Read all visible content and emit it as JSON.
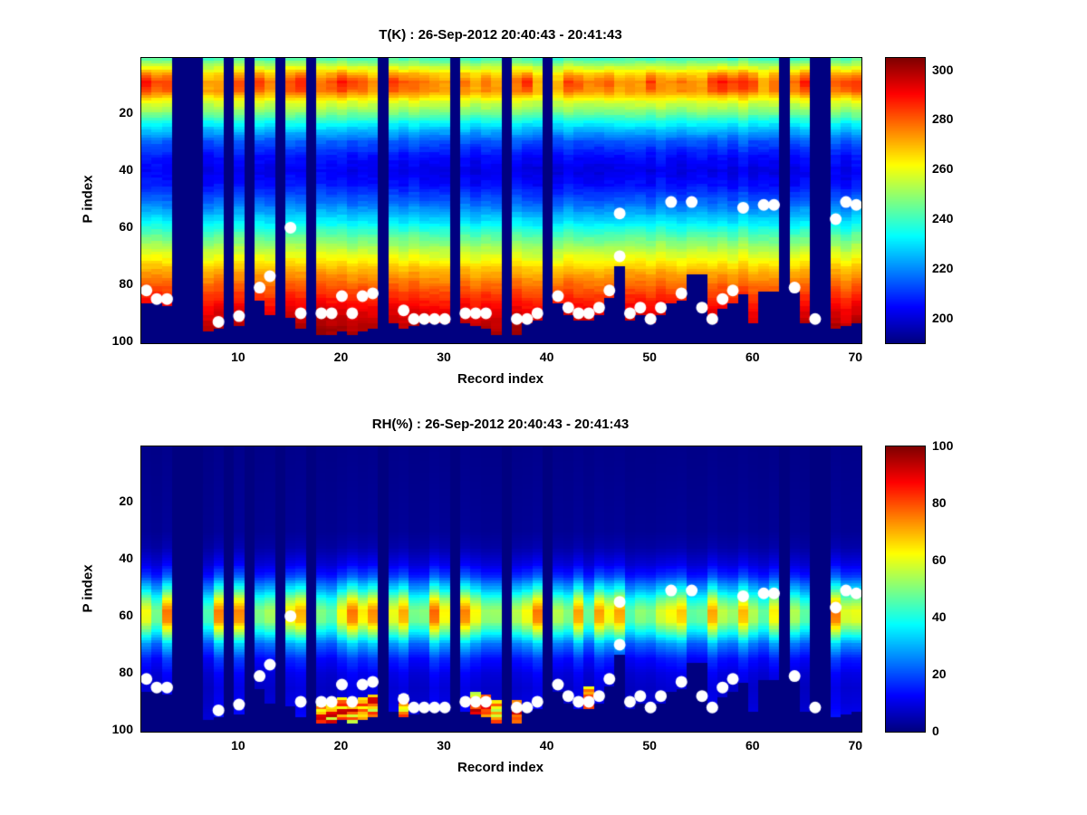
{
  "chart_data": {
    "type": "heatmap",
    "plots": [
      {
        "name": "temperature",
        "type": "heatmap",
        "title": "T(K) : 26-Sep-2012 20:40:43 - 20:41:43",
        "xlabel": "Record index",
        "ylabel": "P index",
        "x_ticks": [
          10,
          20,
          30,
          40,
          50,
          60,
          70
        ],
        "y_ticks": [
          20,
          40,
          60,
          80,
          100
        ],
        "x_range": [
          1,
          70
        ],
        "y_range": [
          1,
          100
        ],
        "y_direction": "down",
        "colormap": "jet",
        "clim": [
          190,
          305
        ],
        "colorbar_ticks": [
          200,
          220,
          240,
          260,
          280,
          300
        ],
        "units": "K",
        "profile_p": [
          1,
          3,
          6,
          9,
          12,
          16,
          20,
          25,
          30,
          35,
          40,
          45,
          50,
          55,
          60,
          65,
          70,
          75,
          80,
          85,
          90,
          95,
          100
        ],
        "profile_v": [
          242,
          252,
          270,
          280,
          277,
          258,
          246,
          228,
          214,
          206,
          202,
          206,
          214,
          224,
          236,
          248,
          259,
          270,
          279,
          287,
          294,
          299,
          302
        ]
      },
      {
        "name": "humidity",
        "type": "heatmap",
        "title": "RH(%) : 26-Sep-2012 20:40:43 - 20:41:43",
        "xlabel": "Record index",
        "ylabel": "P index",
        "x_ticks": [
          10,
          20,
          30,
          40,
          50,
          60,
          70
        ],
        "y_ticks": [
          20,
          40,
          60,
          80,
          100
        ],
        "x_range": [
          1,
          70
        ],
        "y_range": [
          1,
          100
        ],
        "y_direction": "down",
        "colormap": "jet",
        "clim": [
          0,
          100
        ],
        "colorbar_ticks": [
          0,
          20,
          40,
          60,
          80,
          100
        ],
        "units": "%",
        "profile_p": [
          1,
          30,
          36,
          42,
          46,
          50,
          54,
          58,
          62,
          66,
          70,
          75,
          80,
          85,
          90,
          95,
          100
        ],
        "profile_v": [
          1,
          2,
          4,
          10,
          18,
          32,
          48,
          60,
          58,
          42,
          26,
          15,
          10,
          8,
          9,
          11,
          12
        ]
      }
    ],
    "records": {
      "count": 70,
      "missing": [
        4,
        5,
        6,
        9,
        11,
        14,
        17,
        24,
        31,
        36,
        40,
        63,
        66,
        67
      ],
      "surface": [
        86,
        86,
        87,
        null,
        null,
        null,
        96,
        95,
        null,
        94,
        null,
        85,
        90,
        null,
        91,
        95,
        null,
        97,
        97,
        96,
        97,
        96,
        95,
        null,
        93,
        95,
        94,
        93,
        93,
        93,
        null,
        93,
        94,
        95,
        97,
        null,
        97,
        93,
        92,
        null,
        86,
        90,
        92,
        92,
        90,
        84,
        73,
        92,
        90,
        93,
        90,
        86,
        85,
        76,
        76,
        93,
        88,
        86,
        83,
        93,
        82,
        82,
        null,
        82,
        93,
        null,
        null,
        95,
        94,
        93
      ],
      "wet_surface": [
        18,
        19,
        20,
        21,
        22,
        23,
        26,
        33,
        34,
        35,
        37,
        44
      ]
    },
    "dots": [
      {
        "r": 1,
        "p": 82
      },
      {
        "r": 2,
        "p": 85
      },
      {
        "r": 3,
        "p": 85
      },
      {
        "r": 8,
        "p": 93
      },
      {
        "r": 10,
        "p": 91
      },
      {
        "r": 12,
        "p": 81
      },
      {
        "r": 13,
        "p": 77
      },
      {
        "r": 15,
        "p": 60
      },
      {
        "r": 16,
        "p": 90
      },
      {
        "r": 18,
        "p": 90
      },
      {
        "r": 19,
        "p": 90
      },
      {
        "r": 20,
        "p": 84
      },
      {
        "r": 21,
        "p": 90
      },
      {
        "r": 22,
        "p": 84
      },
      {
        "r": 23,
        "p": 83
      },
      {
        "r": 26,
        "p": 89
      },
      {
        "r": 27,
        "p": 92
      },
      {
        "r": 28,
        "p": 92
      },
      {
        "r": 29,
        "p": 92
      },
      {
        "r": 30,
        "p": 92
      },
      {
        "r": 32,
        "p": 90
      },
      {
        "r": 33,
        "p": 90
      },
      {
        "r": 34,
        "p": 90
      },
      {
        "r": 37,
        "p": 92
      },
      {
        "r": 38,
        "p": 92
      },
      {
        "r": 39,
        "p": 90
      },
      {
        "r": 41,
        "p": 84
      },
      {
        "r": 42,
        "p": 88
      },
      {
        "r": 43,
        "p": 90
      },
      {
        "r": 44,
        "p": 90
      },
      {
        "r": 45,
        "p": 88
      },
      {
        "r": 46,
        "p": 82
      },
      {
        "r": 47,
        "p": 55
      },
      {
        "r": 47,
        "p": 70
      },
      {
        "r": 48,
        "p": 90
      },
      {
        "r": 49,
        "p": 88
      },
      {
        "r": 50,
        "p": 92
      },
      {
        "r": 51,
        "p": 88
      },
      {
        "r": 52,
        "p": 51
      },
      {
        "r": 53,
        "p": 83
      },
      {
        "r": 54,
        "p": 51
      },
      {
        "r": 55,
        "p": 88
      },
      {
        "r": 56,
        "p": 92
      },
      {
        "r": 57,
        "p": 85
      },
      {
        "r": 58,
        "p": 82
      },
      {
        "r": 59,
        "p": 53
      },
      {
        "r": 61,
        "p": 52
      },
      {
        "r": 62,
        "p": 52
      },
      {
        "r": 64,
        "p": 81
      },
      {
        "r": 66,
        "p": 92
      },
      {
        "r": 68,
        "p": 57
      },
      {
        "r": 69,
        "p": 51
      },
      {
        "r": 70,
        "p": 52
      }
    ],
    "colors": {
      "background_min": "#000080",
      "dot": "#ffffff",
      "text": "#000000",
      "figure_bg": "#ffffff"
    }
  }
}
